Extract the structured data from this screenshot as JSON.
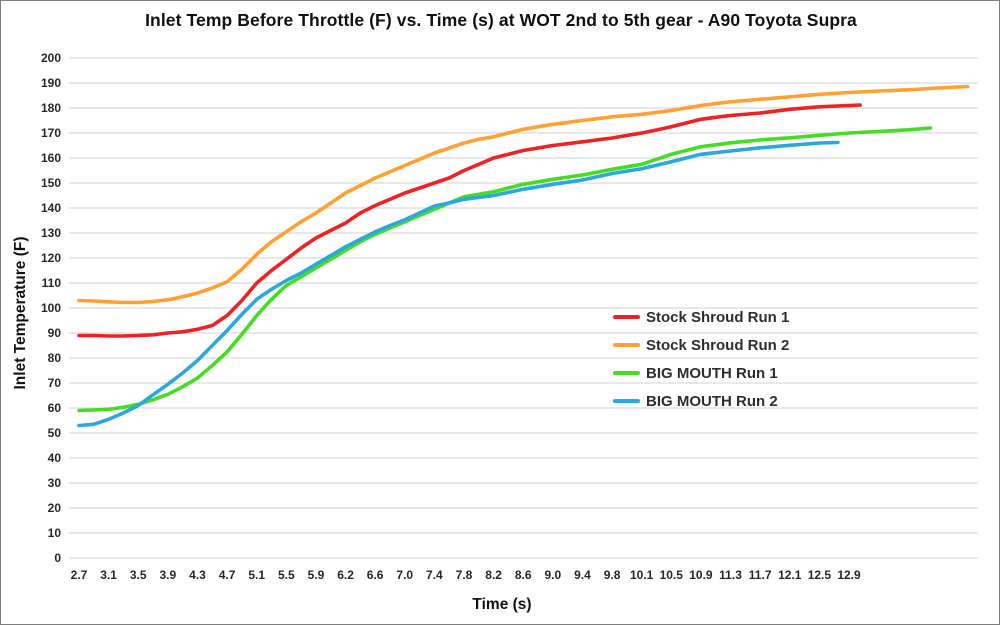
{
  "chart_data": {
    "type": "line",
    "title": "Inlet Temp Before Throttle (F) vs. Time (s) at WOT 2nd to 5th gear - A90 Toyota Supra",
    "xlabel": "Time (s)",
    "ylabel": "Inlet Temperature (F)",
    "x_tick_labels": [
      "2.7",
      "3.1",
      "3.5",
      "3.9",
      "4.3",
      "4.7",
      "5.1",
      "5.5",
      "5.9",
      "6.2",
      "6.6",
      "7.0",
      "7.4",
      "7.8",
      "8.2",
      "8.6",
      "9.0",
      "9.4",
      "9.8",
      "10.1",
      "10.5",
      "10.9",
      "11.3",
      "11.7",
      "12.1",
      "12.5",
      "12.9"
    ],
    "y_tick_labels": [
      "0",
      "10",
      "20",
      "30",
      "40",
      "50",
      "60",
      "70",
      "80",
      "90",
      "100",
      "110",
      "120",
      "130",
      "140",
      "150",
      "160",
      "170",
      "180",
      "190",
      "200"
    ],
    "ylim": [
      0,
      200
    ],
    "y_step": 10,
    "grid": "horizontal",
    "gridline_color": "#d9d9d9",
    "tick_label_color": "#262626",
    "legend_position": "middle-right",
    "series": [
      {
        "name": "Stock Shroud Run 1",
        "color": "#ee2222",
        "points": [
          [
            2.7,
            89
          ],
          [
            2.9,
            89
          ],
          [
            3.1,
            88.8
          ],
          [
            3.3,
            88.8
          ],
          [
            3.5,
            89
          ],
          [
            3.7,
            89.3
          ],
          [
            3.9,
            90
          ],
          [
            4.1,
            90.5
          ],
          [
            4.3,
            91.5
          ],
          [
            4.5,
            93
          ],
          [
            4.7,
            97
          ],
          [
            4.9,
            103
          ],
          [
            5.1,
            110
          ],
          [
            5.3,
            115
          ],
          [
            5.5,
            119.5
          ],
          [
            5.7,
            124
          ],
          [
            5.9,
            128
          ],
          [
            6.05,
            131
          ],
          [
            6.2,
            134
          ],
          [
            6.4,
            138
          ],
          [
            6.6,
            141
          ],
          [
            6.8,
            143.5
          ],
          [
            7.0,
            146
          ],
          [
            7.2,
            148
          ],
          [
            7.4,
            150
          ],
          [
            7.6,
            152
          ],
          [
            7.8,
            155
          ],
          [
            8.0,
            157.5
          ],
          [
            8.2,
            160
          ],
          [
            8.4,
            161.5
          ],
          [
            8.6,
            163
          ],
          [
            9.0,
            165
          ],
          [
            9.4,
            166.5
          ],
          [
            9.8,
            168
          ],
          [
            10.1,
            170
          ],
          [
            10.3,
            171.2
          ],
          [
            10.5,
            172.5
          ],
          [
            10.7,
            174
          ],
          [
            10.9,
            175.5
          ],
          [
            11.1,
            176.3
          ],
          [
            11.3,
            177
          ],
          [
            11.7,
            178
          ],
          [
            12.1,
            179.5
          ],
          [
            12.5,
            180.5
          ],
          [
            12.9,
            181
          ],
          [
            13.05,
            181.2
          ]
        ]
      },
      {
        "name": "Stock Shroud Run 2",
        "color": "#ffa033",
        "points": [
          [
            2.7,
            103
          ],
          [
            2.9,
            102.8
          ],
          [
            3.1,
            102.5
          ],
          [
            3.3,
            102.2
          ],
          [
            3.5,
            102.2
          ],
          [
            3.7,
            102.6
          ],
          [
            3.9,
            103.3
          ],
          [
            4.1,
            104.5
          ],
          [
            4.3,
            106
          ],
          [
            4.5,
            108
          ],
          [
            4.7,
            110.5
          ],
          [
            4.9,
            115.5
          ],
          [
            5.1,
            121.5
          ],
          [
            5.3,
            126.5
          ],
          [
            5.5,
            130.5
          ],
          [
            5.7,
            134.5
          ],
          [
            5.9,
            138
          ],
          [
            6.05,
            142
          ],
          [
            6.2,
            146
          ],
          [
            6.4,
            149
          ],
          [
            6.6,
            152
          ],
          [
            6.8,
            154.5
          ],
          [
            7.0,
            157
          ],
          [
            7.2,
            159.5
          ],
          [
            7.4,
            162
          ],
          [
            7.6,
            164
          ],
          [
            7.8,
            166
          ],
          [
            8.0,
            167.5
          ],
          [
            8.2,
            168.5
          ],
          [
            8.6,
            171.5
          ],
          [
            9.0,
            173.5
          ],
          [
            9.4,
            175
          ],
          [
            9.8,
            176.5
          ],
          [
            10.1,
            177.5
          ],
          [
            10.5,
            179
          ],
          [
            10.9,
            181
          ],
          [
            11.3,
            182.5
          ],
          [
            11.7,
            183.5
          ],
          [
            12.1,
            184.5
          ],
          [
            12.5,
            185.5
          ],
          [
            12.9,
            186.2
          ],
          [
            13.3,
            186.8
          ],
          [
            13.7,
            187.3
          ],
          [
            14.1,
            188
          ],
          [
            14.5,
            188.6
          ]
        ]
      },
      {
        "name": "BIG MOUTH Run 1",
        "color": "#44dd22",
        "points": [
          [
            2.7,
            59
          ],
          [
            2.9,
            59.2
          ],
          [
            3.1,
            59.5
          ],
          [
            3.3,
            60.3
          ],
          [
            3.5,
            61.5
          ],
          [
            3.7,
            63.3
          ],
          [
            3.9,
            65.5
          ],
          [
            4.1,
            68.5
          ],
          [
            4.3,
            72
          ],
          [
            4.5,
            77
          ],
          [
            4.7,
            82.5
          ],
          [
            4.9,
            89.5
          ],
          [
            5.1,
            97
          ],
          [
            5.3,
            103.5
          ],
          [
            5.5,
            109
          ],
          [
            5.7,
            112.5
          ],
          [
            5.9,
            116
          ],
          [
            6.05,
            119.5
          ],
          [
            6.2,
            123
          ],
          [
            6.4,
            126.5
          ],
          [
            6.6,
            129.5
          ],
          [
            6.8,
            132
          ],
          [
            7.0,
            134.5
          ],
          [
            7.2,
            137
          ],
          [
            7.4,
            139.5
          ],
          [
            7.6,
            142
          ],
          [
            7.8,
            144.5
          ],
          [
            8.2,
            146.5
          ],
          [
            8.6,
            149.5
          ],
          [
            9.0,
            151.5
          ],
          [
            9.4,
            153.2
          ],
          [
            9.8,
            155.5
          ],
          [
            10.1,
            157.5
          ],
          [
            10.5,
            161.5
          ],
          [
            10.9,
            164.5
          ],
          [
            11.3,
            166.1
          ],
          [
            11.7,
            167.2
          ],
          [
            12.1,
            168.1
          ],
          [
            12.5,
            169.1
          ],
          [
            12.9,
            170
          ],
          [
            13.3,
            170.6
          ],
          [
            13.7,
            171.3
          ],
          [
            14.0,
            172
          ]
        ]
      },
      {
        "name": "BIG MOUTH Run 2",
        "color": "#2ba7e0",
        "points": [
          [
            2.7,
            53
          ],
          [
            2.9,
            53.5
          ],
          [
            3.1,
            55.5
          ],
          [
            3.3,
            58
          ],
          [
            3.5,
            61
          ],
          [
            3.7,
            65.3
          ],
          [
            3.9,
            69.5
          ],
          [
            4.1,
            74
          ],
          [
            4.3,
            79
          ],
          [
            4.5,
            85
          ],
          [
            4.7,
            91
          ],
          [
            4.9,
            97.5
          ],
          [
            5.1,
            103.5
          ],
          [
            5.3,
            107.5
          ],
          [
            5.5,
            111
          ],
          [
            5.7,
            114
          ],
          [
            5.9,
            117.5
          ],
          [
            6.05,
            121
          ],
          [
            6.2,
            124.5
          ],
          [
            6.4,
            127.5
          ],
          [
            6.6,
            130.5
          ],
          [
            6.8,
            133
          ],
          [
            7.0,
            135.3
          ],
          [
            7.2,
            138
          ],
          [
            7.4,
            140.8
          ],
          [
            7.6,
            142
          ],
          [
            7.8,
            143.5
          ],
          [
            8.2,
            145
          ],
          [
            8.6,
            147.5
          ],
          [
            9.0,
            149.5
          ],
          [
            9.4,
            151.2
          ],
          [
            9.8,
            153.8
          ],
          [
            10.1,
            155.7
          ],
          [
            10.5,
            158.5
          ],
          [
            10.9,
            161.5
          ],
          [
            11.3,
            162.8
          ],
          [
            11.7,
            164.1
          ],
          [
            12.1,
            165.1
          ],
          [
            12.5,
            166
          ],
          [
            12.75,
            166.2
          ]
        ]
      }
    ]
  }
}
